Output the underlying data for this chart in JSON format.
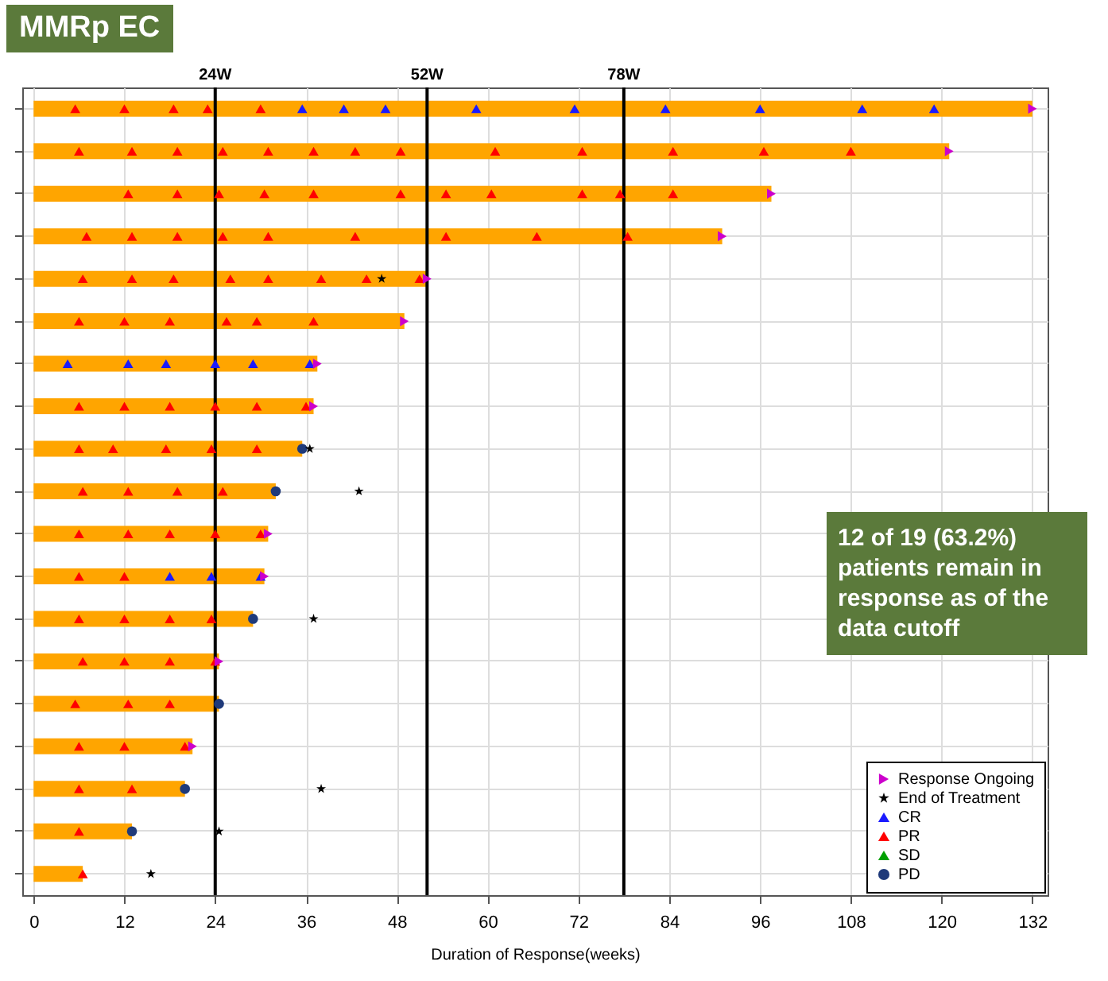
{
  "chart_data": {
    "type": "bar",
    "orientation": "horizontal",
    "title": "MMRp EC",
    "xlabel": "Duration of Response(weeks)",
    "annotations": [
      "12 of 19 (63.2%) patients remain in response as of the data cutoff"
    ],
    "categories": [
      null,
      null,
      null,
      null,
      null,
      null,
      null,
      null,
      null,
      null,
      null,
      null,
      null,
      null,
      null,
      null,
      null,
      null,
      null
    ],
    "xlim": [
      -1.5,
      134
    ],
    "xticks": [
      0,
      12,
      24,
      36,
      48,
      60,
      72,
      84,
      96,
      108,
      120,
      132
    ],
    "grid": true,
    "legend": "bottom right",
    "ref_lines": [
      {
        "axis": "x",
        "value": 24,
        "label": "24W",
        "color": "#000000"
      },
      {
        "axis": "x",
        "value": 52,
        "label": "52W",
        "color": "#000000"
      },
      {
        "axis": "x",
        "value": 78,
        "label": "78W",
        "color": "#000000"
      }
    ],
    "series": [
      {
        "color": "#ffa500",
        "values": [
          132,
          121,
          97.5,
          91,
          52,
          49,
          37.5,
          37,
          35.5,
          32,
          31,
          30.5,
          29,
          24.5,
          24.5,
          21,
          20,
          13,
          6.5
        ]
      },
      {
        "type": "scatter",
        "name": "Response Ongoing",
        "color": "#cc00cc",
        "marker": "triangle-right",
        "values": [
          132,
          121,
          97.5,
          91,
          52,
          49,
          37.5,
          37,
          null,
          null,
          31,
          30.5,
          null,
          24.5,
          null,
          21,
          null,
          null,
          null
        ]
      },
      {
        "type": "scatter",
        "name": "End of Treatment",
        "color": "#000000",
        "marker": "star",
        "values": [
          null,
          null,
          null,
          null,
          46,
          null,
          null,
          null,
          36.5,
          43,
          null,
          null,
          37,
          null,
          null,
          null,
          38,
          24.5,
          15.5
        ]
      },
      {
        "type": "scatter",
        "name": "CR",
        "color": "#1a1aff",
        "marker": "triangle",
        "values": [
          35.5,
          null,
          null,
          null,
          null,
          null,
          4.5,
          null,
          null,
          null,
          null,
          18,
          null,
          null,
          null,
          null,
          null,
          null,
          null
        ]
      },
      {
        "type": "scatter",
        "name": "PR",
        "color": "#ff0000",
        "marker": "triangle",
        "values": [
          5.5,
          6,
          12.5,
          7,
          6.5,
          6,
          null,
          6,
          6,
          6.5,
          6,
          6,
          6,
          6.5,
          5.5,
          6,
          6,
          6,
          6.5
        ]
      },
      {
        "type": "scatter",
        "name": "SD",
        "color": "#00a000",
        "marker": "triangle",
        "values": [
          null,
          null,
          null,
          null,
          null,
          null,
          null,
          null,
          null,
          null,
          null,
          null,
          null,
          null,
          null,
          null,
          null,
          null,
          null
        ]
      },
      {
        "type": "scatter",
        "name": "PD",
        "color": "#1f3a7a",
        "marker": "circle",
        "values": [
          null,
          null,
          null,
          null,
          null,
          null,
          null,
          null,
          35.5,
          32,
          null,
          null,
          29,
          null,
          24.5,
          null,
          20,
          13,
          null
        ]
      },
      {
        "type": "scatter",
        "color": "#1a1aff",
        "marker": "triangle",
        "values": [
          41,
          null,
          null,
          null,
          null,
          null,
          12.5,
          null,
          null,
          null,
          null,
          23.5,
          null,
          null,
          null,
          null,
          null,
          null,
          null
        ]
      },
      {
        "type": "scatter",
        "color": "#1a1aff",
        "marker": "triangle",
        "values": [
          46.5,
          null,
          null,
          null,
          null,
          null,
          17.5,
          null,
          null,
          null,
          null,
          30,
          null,
          null,
          null,
          null,
          null,
          null,
          null
        ]
      },
      {
        "type": "scatter",
        "color": "#1a1aff",
        "marker": "triangle",
        "values": [
          58.5,
          null,
          null,
          null,
          null,
          null,
          24,
          null,
          null,
          null,
          null,
          null,
          null,
          null,
          null,
          null,
          null,
          null,
          null
        ]
      },
      {
        "type": "scatter",
        "color": "#1a1aff",
        "marker": "triangle",
        "values": [
          71.5,
          null,
          null,
          null,
          null,
          null,
          29,
          null,
          null,
          null,
          null,
          null,
          null,
          null,
          null,
          null,
          null,
          null,
          null
        ]
      },
      {
        "type": "scatter",
        "color": "#1a1aff",
        "marker": "triangle",
        "values": [
          83.5,
          null,
          null,
          null,
          null,
          null,
          36.5,
          null,
          null,
          null,
          null,
          null,
          null,
          null,
          null,
          null,
          null,
          null,
          null
        ]
      },
      {
        "type": "scatter",
        "color": "#1a1aff",
        "marker": "triangle",
        "values": [
          96,
          null,
          null,
          null,
          null,
          null,
          null,
          null,
          null,
          null,
          null,
          null,
          null,
          null,
          null,
          null,
          null,
          null,
          null
        ]
      },
      {
        "type": "scatter",
        "color": "#1a1aff",
        "marker": "triangle",
        "values": [
          109.5,
          null,
          null,
          null,
          null,
          null,
          null,
          null,
          null,
          null,
          null,
          null,
          null,
          null,
          null,
          null,
          null,
          null,
          null
        ]
      },
      {
        "type": "scatter",
        "color": "#1a1aff",
        "marker": "triangle",
        "values": [
          119,
          null,
          null,
          null,
          null,
          null,
          null,
          null,
          null,
          null,
          null,
          null,
          null,
          null,
          null,
          null,
          null,
          null,
          null
        ]
      },
      {
        "type": "scatter",
        "color": "#ff0000",
        "marker": "triangle",
        "values": [
          12,
          13,
          19,
          13,
          13,
          12,
          null,
          12,
          10.5,
          12.5,
          12.5,
          12,
          12,
          12,
          12.5,
          12,
          13,
          null,
          null
        ]
      },
      {
        "type": "scatter",
        "color": "#ff0000",
        "marker": "triangle",
        "values": [
          18.5,
          19,
          24.5,
          19,
          18.5,
          18,
          null,
          18,
          17.5,
          19,
          18,
          null,
          18,
          18,
          18,
          20,
          null,
          null,
          null
        ]
      },
      {
        "type": "scatter",
        "color": "#ff0000",
        "marker": "triangle",
        "values": [
          23,
          25,
          30.5,
          25,
          26,
          25.5,
          null,
          24,
          23.5,
          25,
          24,
          null,
          23.5,
          24,
          null,
          null,
          null,
          null,
          null
        ]
      },
      {
        "type": "scatter",
        "color": "#ff0000",
        "marker": "triangle",
        "values": [
          30,
          31,
          37,
          31,
          31,
          29.5,
          null,
          29.5,
          29.5,
          null,
          30,
          null,
          null,
          null,
          null,
          null,
          null,
          null,
          null
        ]
      },
      {
        "type": "scatter",
        "color": "#ff0000",
        "marker": "triangle",
        "values": [
          null,
          37,
          48.5,
          42.5,
          38,
          37,
          null,
          36,
          null,
          null,
          null,
          null,
          null,
          null,
          null,
          null,
          null,
          null,
          null
        ]
      },
      {
        "type": "scatter",
        "color": "#ff0000",
        "marker": "triangle",
        "values": [
          null,
          42.5,
          54.5,
          54.5,
          44,
          null,
          null,
          null,
          null,
          null,
          null,
          null,
          null,
          null,
          null,
          null,
          null,
          null,
          null
        ]
      },
      {
        "type": "scatter",
        "color": "#ff0000",
        "marker": "triangle",
        "values": [
          null,
          48.5,
          60.5,
          66.5,
          51,
          null,
          null,
          null,
          null,
          null,
          null,
          null,
          null,
          null,
          null,
          null,
          null,
          null,
          null
        ]
      },
      {
        "type": "scatter",
        "color": "#ff0000",
        "marker": "triangle",
        "values": [
          null,
          61,
          72.5,
          78.5,
          null,
          null,
          null,
          null,
          null,
          null,
          null,
          null,
          null,
          null,
          null,
          null,
          null,
          null,
          null
        ]
      },
      {
        "type": "scatter",
        "color": "#ff0000",
        "marker": "triangle",
        "values": [
          null,
          72.5,
          77.5,
          null,
          null,
          null,
          null,
          null,
          null,
          null,
          null,
          null,
          null,
          null,
          null,
          null,
          null,
          null,
          null
        ]
      },
      {
        "type": "scatter",
        "color": "#ff0000",
        "marker": "triangle",
        "values": [
          null,
          84.5,
          84.5,
          null,
          null,
          null,
          null,
          null,
          null,
          null,
          null,
          null,
          null,
          null,
          null,
          null,
          null,
          null,
          null
        ]
      },
      {
        "type": "scatter",
        "color": "#ff0000",
        "marker": "triangle",
        "values": [
          null,
          96.5,
          null,
          null,
          null,
          null,
          null,
          null,
          null,
          null,
          null,
          null,
          null,
          null,
          null,
          null,
          null,
          null,
          null
        ]
      },
      {
        "type": "scatter",
        "color": "#ff0000",
        "marker": "triangle",
        "values": [
          null,
          108,
          null,
          null,
          null,
          null,
          null,
          null,
          null,
          null,
          null,
          null,
          null,
          null,
          null,
          null,
          null,
          null,
          null
        ]
      }
    ]
  }
}
